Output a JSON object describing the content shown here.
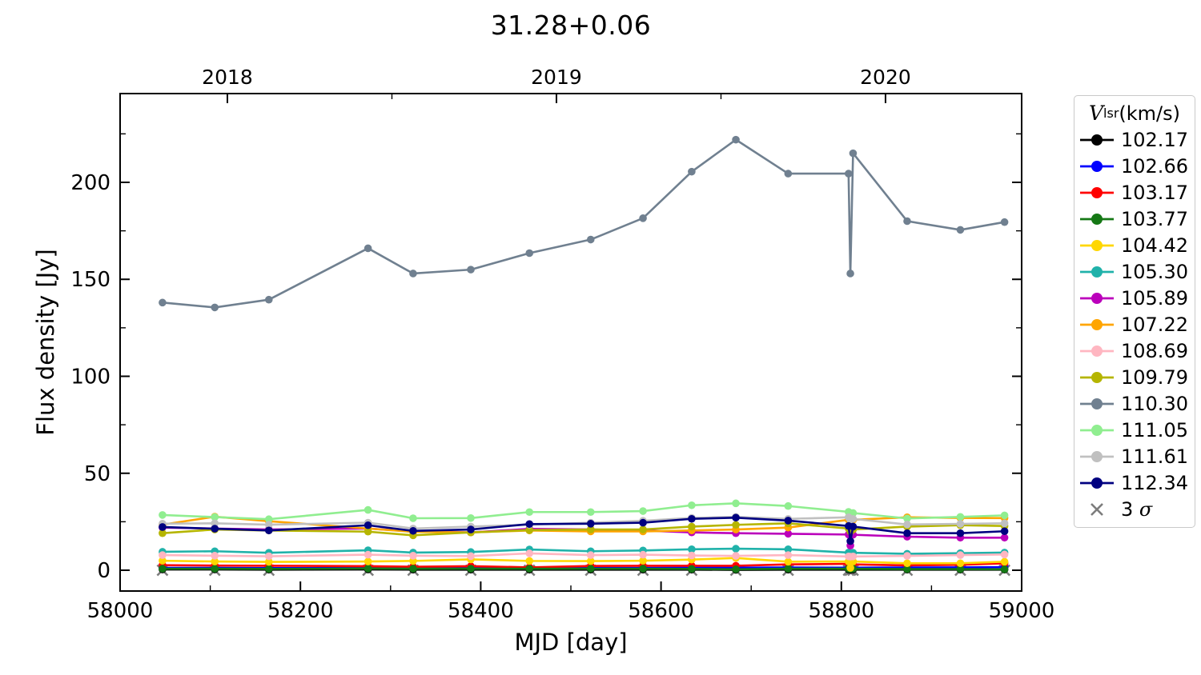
{
  "chart_data": {
    "type": "line",
    "title": "31.28+0.06",
    "xlabel": "MJD [day]",
    "ylabel": "Flux density [Jy]",
    "xlim": [
      58000,
      59000
    ],
    "ylim": [
      -10.72,
      245.77
    ],
    "x_ticks": [
      58000,
      58200,
      58400,
      58600,
      58800,
      59000
    ],
    "x_minor_ticks": [
      58100,
      58300,
      58500,
      58700,
      58900
    ],
    "y_ticks": [
      0,
      50,
      100,
      150,
      200
    ],
    "y_minor_ticks": [
      25,
      75,
      125,
      175,
      225
    ],
    "grid": false,
    "top_axis_year_ticks": [
      {
        "mjd": 58119,
        "label": "2018"
      },
      {
        "mjd": 58484,
        "label": "2019"
      },
      {
        "mjd": 58849,
        "label": "2020"
      }
    ],
    "top_axis_minor_ticks": [
      58301.5,
      58666.5
    ],
    "legend_title_var": "V",
    "legend_title_sub": "lsr",
    "legend_title_unit": " (km/s)",
    "legend_position": "right-outside",
    "x": [
      58047,
      58105,
      58165,
      58275,
      58325,
      58389,
      58454,
      58522,
      58580,
      58634,
      58683,
      58741,
      58808,
      58810,
      58813,
      58873,
      58932,
      58981
    ],
    "series": [
      {
        "name": "102.17",
        "color": "#000000",
        "values": [
          0.4,
          0.4,
          0.3,
          0.4,
          0.3,
          0.3,
          0.3,
          0.3,
          0.3,
          0.3,
          0.2,
          0.3,
          0.3,
          0.2,
          0.3,
          0.3,
          0.3,
          0.3
        ]
      },
      {
        "name": "102.66",
        "color": "#0000ff",
        "values": [
          1.2,
          1.2,
          1.1,
          1.2,
          1.1,
          1.2,
          1.1,
          1.2,
          1.2,
          1.3,
          1.3,
          1.4,
          1.3,
          1.2,
          1.3,
          1.4,
          1.5,
          1.6
        ]
      },
      {
        "name": "103.17",
        "color": "#ff0000",
        "values": [
          2.6,
          2.4,
          2.3,
          2.1,
          1.8,
          2.1,
          1.5,
          2.2,
          2.3,
          2.3,
          2.3,
          3.0,
          3.3,
          2.8,
          3.0,
          2.5,
          2.8,
          3.6
        ]
      },
      {
        "name": "103.77",
        "color": "#157815",
        "values": [
          0.8,
          0.8,
          0.7,
          0.9,
          0.8,
          0.8,
          0.8,
          0.8,
          0.8,
          0.7,
          0.5,
          0.8,
          0.8,
          0.7,
          0.8,
          0.6,
          0.6,
          0.5
        ]
      },
      {
        "name": "104.42",
        "color": "#ffd700",
        "values": [
          4.9,
          4.5,
          4.3,
          4.5,
          4.8,
          5.6,
          4.8,
          4.7,
          4.9,
          5.5,
          6.3,
          4.4,
          4.5,
          1.2,
          4.5,
          3.6,
          3.6,
          4.4
        ]
      },
      {
        "name": "105.30",
        "color": "#20b2aa",
        "values": [
          9.5,
          9.8,
          9.0,
          10.3,
          9.1,
          9.4,
          10.7,
          9.8,
          10.2,
          10.8,
          11.1,
          10.8,
          9.1,
          8.8,
          9.0,
          8.5,
          8.8,
          9.1
        ]
      },
      {
        "name": "105.89",
        "color": "#bb00bb",
        "values": [
          22.0,
          21.5,
          21.0,
          21.5,
          20.0,
          19.5,
          21.3,
          21.0,
          20.5,
          19.5,
          19.1,
          18.8,
          18.4,
          12.7,
          18.3,
          17.3,
          16.8,
          16.8
        ]
      },
      {
        "name": "107.22",
        "color": "#ffa500",
        "values": [
          23.5,
          27.6,
          25.3,
          21.5,
          19.8,
          19.5,
          20.5,
          20.0,
          20.0,
          20.5,
          21.0,
          22.0,
          26.0,
          25.0,
          26.0,
          27.3,
          27.0,
          26.9
        ]
      },
      {
        "name": "108.69",
        "color": "#ffb6c1",
        "values": [
          7.8,
          7.5,
          7.2,
          8.0,
          7.5,
          7.3,
          8.7,
          7.8,
          8.0,
          7.6,
          7.4,
          7.8,
          7.1,
          7.0,
          7.1,
          7.4,
          7.8,
          8.1
        ]
      },
      {
        "name": "109.79",
        "color": "#b5b500",
        "values": [
          19.1,
          21.0,
          20.5,
          19.9,
          18.0,
          19.5,
          20.7,
          21.0,
          21.0,
          22.5,
          23.4,
          24.2,
          21.5,
          20.0,
          21.0,
          22.5,
          23.2,
          22.8
        ]
      },
      {
        "name": "110.30",
        "color": "#708090",
        "values": [
          138,
          135.5,
          139.5,
          166,
          153,
          155,
          163.5,
          170.5,
          181.5,
          205.5,
          222,
          204.5,
          204.5,
          153,
          215,
          180,
          175.5,
          179.5
        ]
      },
      {
        "name": "111.05",
        "color": "#90ee90",
        "values": [
          28.5,
          27.4,
          26.3,
          31.1,
          26.8,
          26.9,
          30.0,
          30.0,
          30.5,
          33.5,
          34.5,
          33.1,
          30.1,
          28.0,
          29.5,
          26.7,
          27.5,
          28.3
        ]
      },
      {
        "name": "111.61",
        "color": "#c0c0c0",
        "values": [
          24.0,
          24.2,
          23.5,
          24.5,
          21.5,
          22.5,
          23.5,
          24.5,
          25.5,
          27.0,
          27.5,
          26.5,
          27.3,
          26.0,
          26.5,
          23.6,
          23.9,
          24.2
        ]
      },
      {
        "name": "112.34",
        "color": "#000080",
        "values": [
          22.3,
          21.4,
          20.5,
          23.2,
          20.3,
          21.0,
          23.8,
          24.0,
          24.5,
          26.5,
          27.1,
          25.6,
          22.8,
          15.0,
          22.5,
          19.1,
          19.1,
          20.1
        ]
      }
    ],
    "sigma_marker": {
      "label_prefix": "3 ",
      "label_symbol": "σ",
      "color": "#7d7d7d",
      "values": [
        0,
        0,
        0,
        0,
        0,
        0,
        0,
        0,
        0,
        0,
        0,
        0,
        0,
        0,
        0,
        0,
        0,
        0
      ]
    }
  }
}
